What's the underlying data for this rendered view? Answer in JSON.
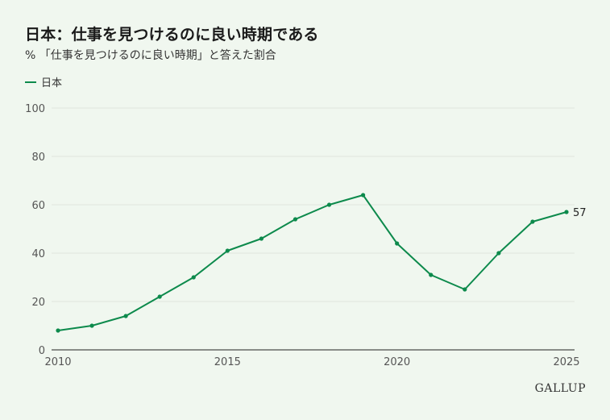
{
  "header": {
    "title": "日本：仕事を見つけるのに良い時期である",
    "subtitle": "% 「仕事を見つけるのに良い時期」と答えた割合"
  },
  "legend": {
    "label": "日本",
    "color": "#0d8a4c"
  },
  "brand": "GALLUP",
  "chart_data": {
    "type": "line",
    "title": "日本：仕事を見つけるのに良い時期である",
    "subtitle": "% 「仕事を見つけるのに良い時期」と答えた割合",
    "xlabel": "",
    "ylabel": "",
    "x": [
      2010,
      2011,
      2012,
      2013,
      2014,
      2015,
      2016,
      2017,
      2018,
      2019,
      2020,
      2021,
      2022,
      2023,
      2024,
      2025
    ],
    "series": [
      {
        "name": "日本",
        "color": "#0d8a4c",
        "values": [
          8,
          10,
          14,
          22,
          30,
          41,
          46,
          54,
          60,
          64,
          44,
          31,
          25,
          40,
          53,
          57
        ]
      }
    ],
    "xticks": [
      2010,
      2015,
      2020,
      2025
    ],
    "yticks": [
      0,
      20,
      40,
      60,
      80,
      100
    ],
    "xlim": [
      2010,
      2025
    ],
    "ylim": [
      0,
      100
    ],
    "end_label": "57",
    "grid": true,
    "legend_position": "top-left"
  }
}
